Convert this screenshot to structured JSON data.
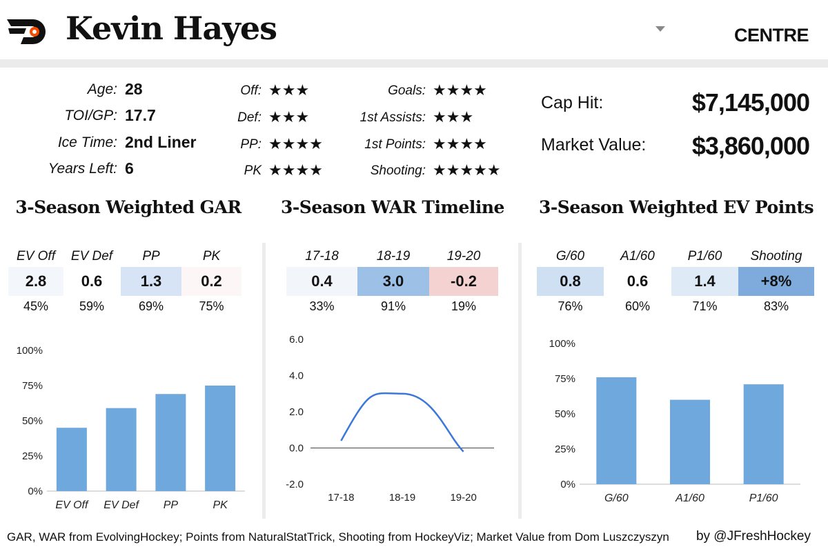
{
  "header": {
    "player_name": "Kevin Hayes",
    "position": "CENTRE",
    "logo_icon": "flyers-logo-icon",
    "accent_color": "#f74902"
  },
  "info": {
    "age_label": "Age:",
    "age_value": "28",
    "toi_label": "TOI/GP:",
    "toi_value": "17.7",
    "ice_label": "Ice Time:",
    "ice_value": "2nd Liner",
    "years_label": "Years Left:",
    "years_value": "6"
  },
  "ratings_left": [
    {
      "label": "Off:",
      "stars": "★★★",
      "count": 3
    },
    {
      "label": "Def:",
      "stars": "★★★",
      "count": 3
    },
    {
      "label": "PP:",
      "stars": "★★★★",
      "count": 4
    },
    {
      "label": "PK",
      "stars": "★★★★",
      "count": 4
    }
  ],
  "ratings_right": [
    {
      "label": "Goals:",
      "stars": "★★★★",
      "count": 4
    },
    {
      "label": "1st Assists:",
      "stars": "★★★",
      "count": 3
    },
    {
      "label": "1st Points:",
      "stars": "★★★★",
      "count": 4
    },
    {
      "label": "Shooting:",
      "stars": "★★★★★",
      "count": 5
    }
  ],
  "contract": {
    "cap_hit_label": "Cap Hit:",
    "cap_hit_value": "$7,145,000",
    "market_label": "Market Value:",
    "market_value": "$3,860,000"
  },
  "gar": {
    "title": "3-Season Weighted GAR",
    "headers": [
      "EV Off",
      "EV Def",
      "PP",
      "PK"
    ],
    "values": [
      "2.8",
      "0.6",
      "1.3",
      "0.2"
    ],
    "percentiles": [
      "45%",
      "59%",
      "69%",
      "75%"
    ],
    "cell_colors": [
      "#f3f6fb",
      "#ffffff",
      "#d6e4f5",
      "#fdf6f6"
    ]
  },
  "war": {
    "title": "3-Season WAR Timeline",
    "headers": [
      "17-18",
      "18-19",
      "19-20"
    ],
    "values": [
      "0.4",
      "3.0",
      "-0.2"
    ],
    "percentiles": [
      "33%",
      "91%",
      "19%"
    ],
    "cell_colors": [
      "#f2f6fb",
      "#9dc1e6",
      "#f5d2d2"
    ]
  },
  "ev_points": {
    "title": "3-Season Weighted EV Points",
    "headers": [
      "G/60",
      "A1/60",
      "P1/60",
      "Shooting"
    ],
    "values": [
      "0.8",
      "0.6",
      "1.4",
      "+8%"
    ],
    "percentiles": [
      "76%",
      "60%",
      "71%",
      "83%"
    ],
    "cell_colors": [
      "#cfe0f3",
      "#ffffff",
      "#deeaf6",
      "#7fabdc"
    ]
  },
  "chart_data": [
    {
      "type": "bar",
      "categories": [
        "EV Off",
        "EV Def",
        "PP",
        "PK"
      ],
      "values": [
        45,
        59,
        69,
        75
      ],
      "yticks": [
        "0%",
        "25%",
        "50%",
        "75%",
        "100%"
      ],
      "ylim": [
        0,
        100
      ],
      "color": "#6fa8dc"
    },
    {
      "type": "line",
      "categories": [
        "17-18",
        "18-19",
        "19-20"
      ],
      "values": [
        0.4,
        3.0,
        -0.2
      ],
      "yticks": [
        "-2.0",
        "0.0",
        "2.0",
        "4.0",
        "6.0"
      ],
      "ylim": [
        -2,
        6
      ],
      "color": "#3c78d8"
    },
    {
      "type": "bar",
      "categories": [
        "G/60",
        "A1/60",
        "P1/60"
      ],
      "values": [
        76,
        60,
        71
      ],
      "yticks": [
        "0%",
        "25%",
        "50%",
        "75%",
        "100%"
      ],
      "ylim": [
        0,
        100
      ],
      "color": "#6fa8dc"
    }
  ],
  "footer": {
    "sources": "GAR, WAR from EvolvingHockey; Points from NaturalStatTrick, Shooting from HockeyViz; Market Value from Dom Luszczyszyn",
    "byline": "by @JFreshHockey"
  }
}
